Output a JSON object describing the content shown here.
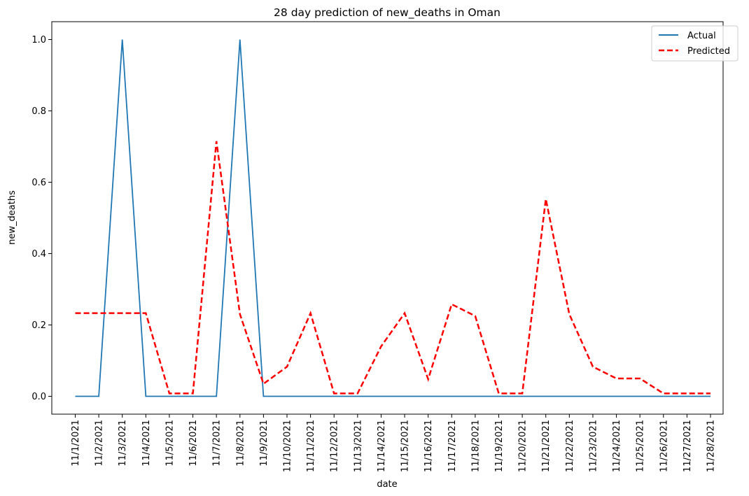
{
  "chart_data": {
    "type": "line",
    "title": "28 day prediction of new_deaths in Oman",
    "xlabel": "date",
    "ylabel": "new_deaths",
    "categories": [
      "11/1/2021",
      "11/2/2021",
      "11/3/2021",
      "11/4/2021",
      "11/5/2021",
      "11/6/2021",
      "11/7/2021",
      "11/8/2021",
      "11/9/2021",
      "11/10/2021",
      "11/11/2021",
      "11/12/2021",
      "11/13/2021",
      "11/14/2021",
      "11/15/2021",
      "11/16/2021",
      "11/17/2021",
      "11/18/2021",
      "11/19/2021",
      "11/20/2021",
      "11/21/2021",
      "11/22/2021",
      "11/23/2021",
      "11/24/2021",
      "11/25/2021",
      "11/26/2021",
      "11/27/2021",
      "11/28/2021"
    ],
    "series": [
      {
        "name": "Actual",
        "color": "#1f77b4",
        "style": "solid",
        "values": [
          0,
          0,
          1,
          0,
          0,
          0,
          0,
          1,
          0,
          0,
          0,
          0,
          0,
          0,
          0,
          0,
          0,
          0,
          0,
          0,
          0,
          0,
          0,
          0,
          0,
          0,
          0,
          0
        ]
      },
      {
        "name": "Predicted",
        "color": "#ff0000",
        "style": "dashed",
        "values": [
          0.233,
          0.233,
          0.233,
          0.233,
          0.008,
          0.008,
          0.715,
          0.23,
          0.035,
          0.083,
          0.233,
          0.008,
          0.008,
          0.14,
          0.233,
          0.048,
          0.258,
          0.225,
          0.008,
          0.008,
          0.553,
          0.23,
          0.083,
          0.05,
          0.05,
          0.008,
          0.008,
          0.008
        ]
      }
    ],
    "yticks": [
      "0.0",
      "0.2",
      "0.4",
      "0.6",
      "0.8",
      "1.0"
    ],
    "ylim": [
      -0.05,
      1.05
    ],
    "grid": false,
    "legend": "top-right"
  }
}
